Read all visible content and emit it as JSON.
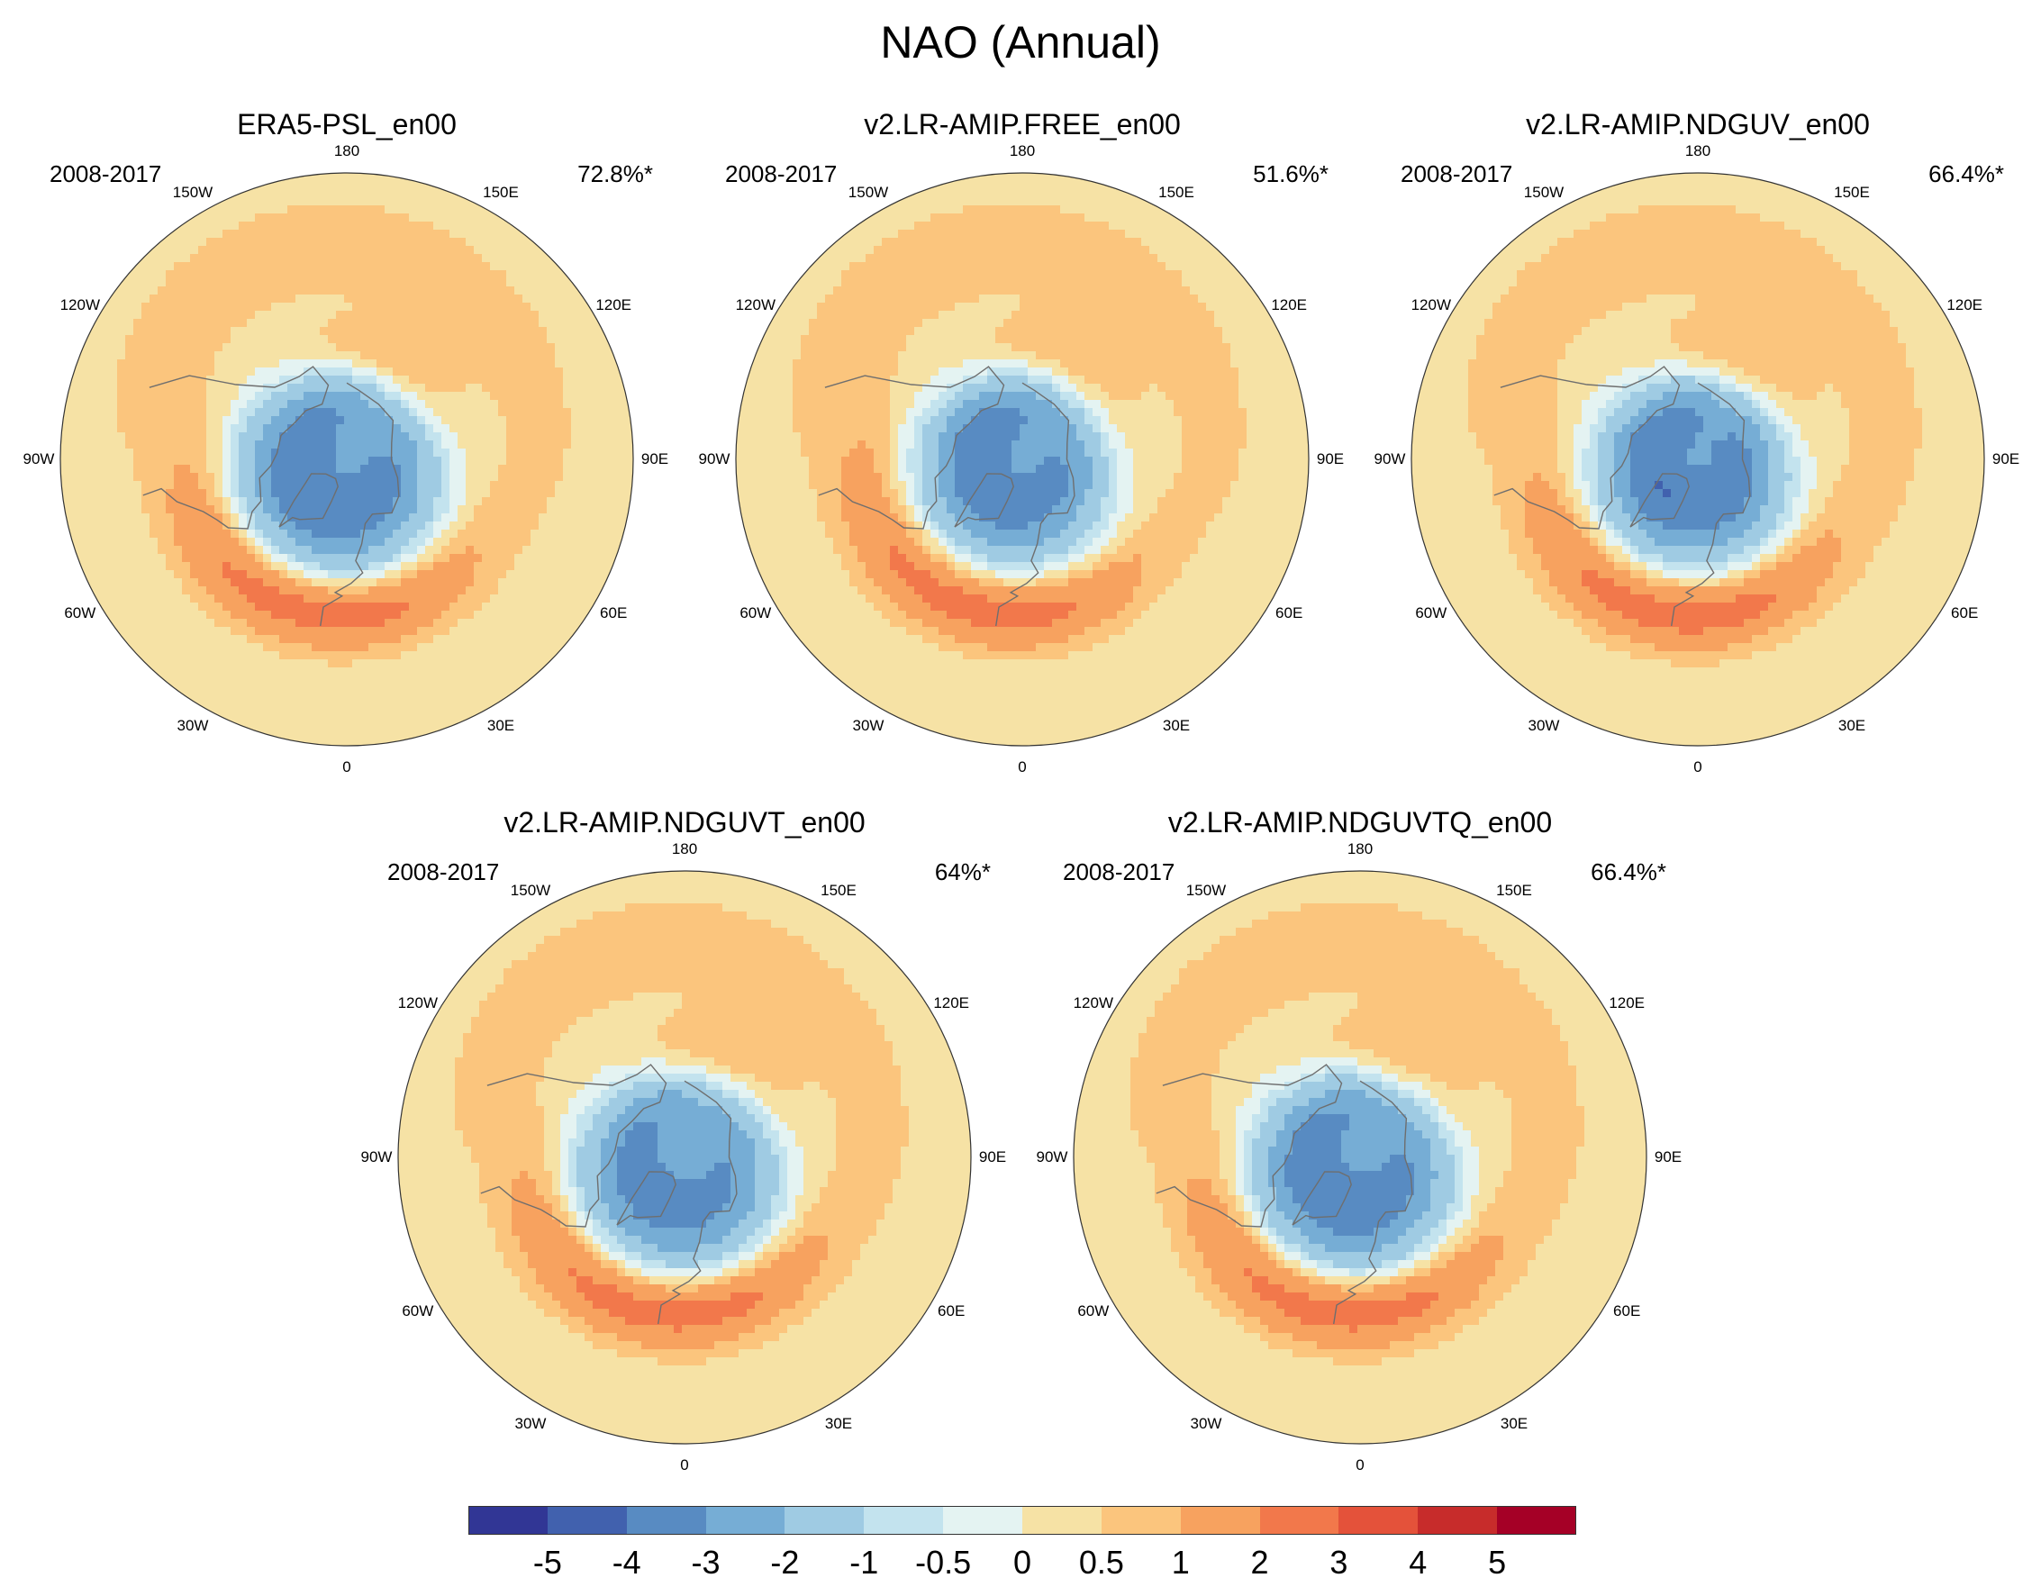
{
  "title": "NAO (Annual)",
  "chart_data": {
    "type": "heatmap",
    "projection": "north polar stereographic",
    "field": "NAO sea-level pressure pattern",
    "panels": [
      {
        "title": "ERA5-PSL_en00",
        "period": "2008-2017",
        "variance": "72.8%*",
        "low_center_lon": -30,
        "low_center_lat": 70,
        "low_min": -3.3,
        "high_center_lon": -35,
        "high_center_lat": 40,
        "high_max": 2.0
      },
      {
        "title": "v2.LR-AMIP.FREE_en00",
        "period": "2008-2017",
        "variance": "51.6%*",
        "low_center_lon": -40,
        "low_center_lat": 72,
        "low_min": -3.0,
        "high_center_lon": -40,
        "high_center_lat": 40,
        "high_max": 2.0
      },
      {
        "title": "v2.LR-AMIP.NDGUV_en00",
        "period": "2008-2017",
        "variance": "66.4%*",
        "low_center_lon": -25,
        "low_center_lat": 72,
        "low_min": -3.2,
        "high_center_lon": -30,
        "high_center_lat": 40,
        "high_max": 2.0
      },
      {
        "title": "v2.LR-AMIP.NDGUVT_en00",
        "period": "2008-2017",
        "variance": "64%*",
        "low_center_lon": -20,
        "low_center_lat": 70,
        "low_min": -3.0,
        "high_center_lon": -30,
        "high_center_lat": 40,
        "high_max": 2.0
      },
      {
        "title": "v2.LR-AMIP.NDGUVTQ_en00",
        "period": "2008-2017",
        "variance": "66.4%*",
        "low_center_lon": -25,
        "low_center_lat": 70,
        "low_min": -3.2,
        "high_center_lon": -30,
        "high_center_lat": 40,
        "high_max": 2.0
      }
    ],
    "longitude_labels": [
      "180",
      "150E",
      "120E",
      "90E",
      "60E",
      "30E",
      "0",
      "30W",
      "60W",
      "90W",
      "120W",
      "150W"
    ],
    "longitude_values": [
      180,
      150,
      120,
      90,
      60,
      30,
      0,
      -30,
      -60,
      -90,
      -120,
      -150
    ],
    "colorbar": {
      "levels": [
        "-5",
        "-4",
        "-3",
        "-2",
        "-1",
        "-0.5",
        "0",
        "0.5",
        "1",
        "2",
        "3",
        "4",
        "5"
      ],
      "colors": [
        "#313695",
        "#4161ae",
        "#588bc2",
        "#76add5",
        "#9fcbe3",
        "#c3e3ee",
        "#e4f3f2",
        "#f6e2a5",
        "#fbc57d",
        "#f7a25f",
        "#f2784b",
        "#e4523a",
        "#c72c2b",
        "#a50026"
      ]
    },
    "land_color": "#6e6e6e"
  }
}
